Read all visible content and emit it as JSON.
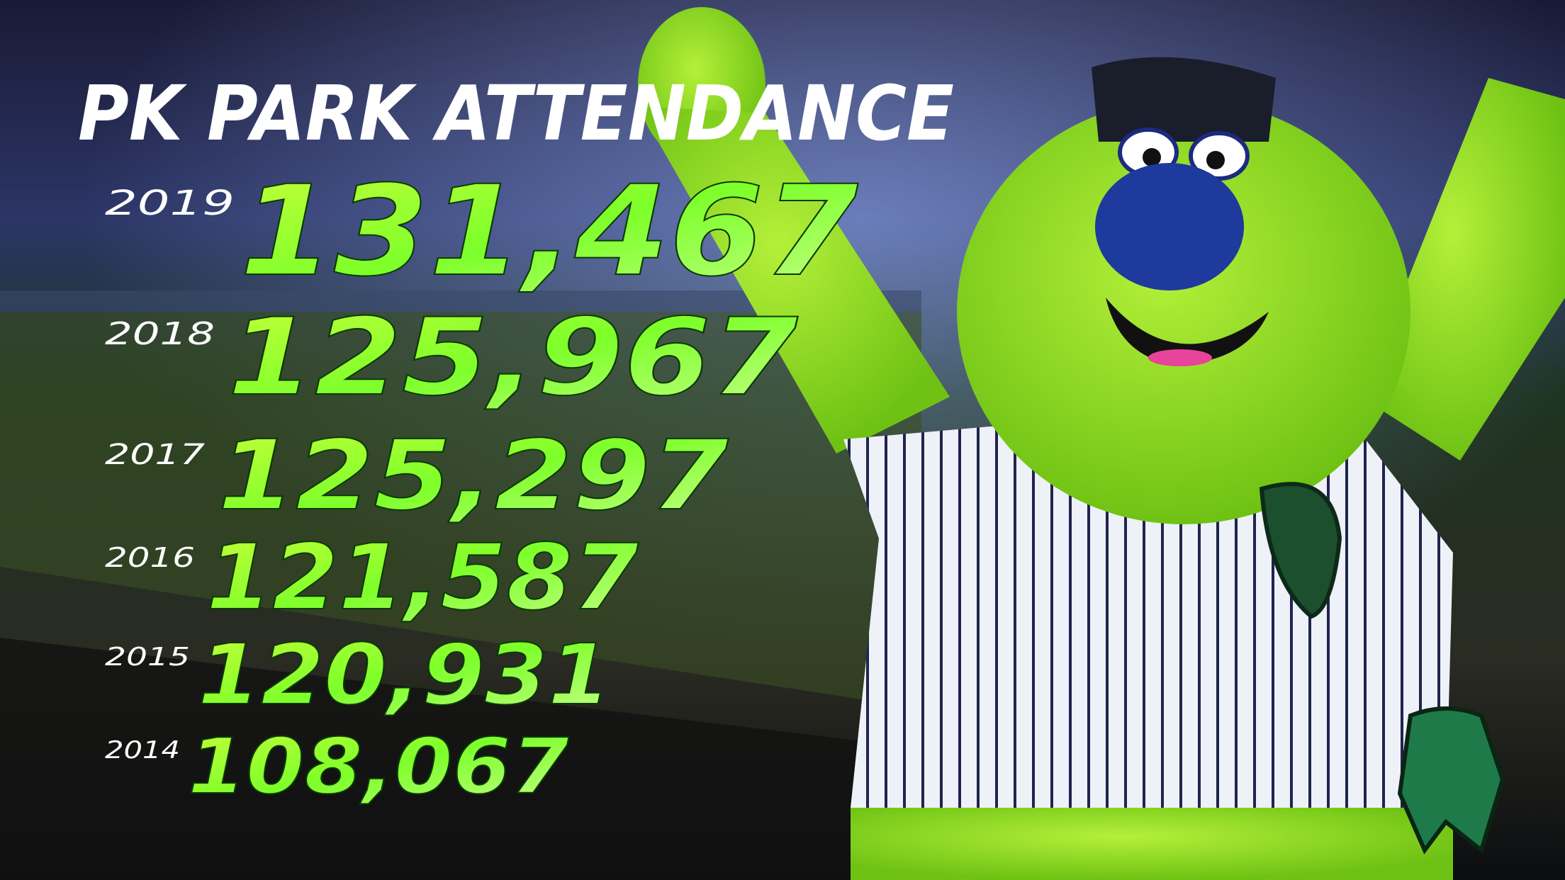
{
  "title": "PK PARK ATTENDANCE",
  "rows": [
    {
      "year": "2019",
      "attendance": "131,467"
    },
    {
      "year": "2018",
      "attendance": "125,967"
    },
    {
      "year": "2017",
      "attendance": "125,297"
    },
    {
      "year": "2016",
      "attendance": "121,587"
    },
    {
      "year": "2015",
      "attendance": "120,931"
    },
    {
      "year": "2014",
      "attendance": "108,067"
    }
  ]
}
